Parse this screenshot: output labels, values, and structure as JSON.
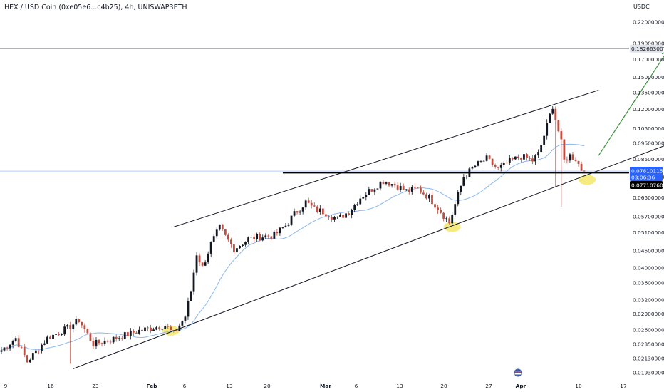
{
  "chart_data": {
    "type": "candlestick",
    "title": "HEX / USD Coin (0xe05e6...c4b25), 4h, UNISWAP3ETH",
    "price_unit": "USDC",
    "y_scale": "log",
    "ylim": [
      0.0186,
      0.232
    ],
    "price_axis_labels": [
      "0.2200000000",
      "0.1900000000",
      "0.1700000000",
      "0.1500000000",
      "0.1350000000",
      "0.1200000000",
      "0.1050000000",
      "0.0950000000",
      "0.0850000000",
      "0.0750000000",
      "0.0650000000",
      "0.0570000000",
      "0.0510000000",
      "0.0450000000",
      "0.0400000000",
      "0.0360000000",
      "0.0320000000",
      "0.0290000000",
      "0.0260000000",
      "0.0235000000",
      "0.0213000000",
      "0.0193000000"
    ],
    "price_axis_values": [
      0.22,
      0.19,
      0.17,
      0.15,
      0.135,
      0.12,
      0.105,
      0.095,
      0.085,
      0.075,
      0.065,
      0.057,
      0.051,
      0.045,
      0.04,
      0.036,
      0.032,
      0.029,
      0.026,
      0.0235,
      0.0213,
      0.0193
    ],
    "price_tags": {
      "target": {
        "label": "0.1826630079",
        "value": 0.1827,
        "color": "#e1e3ea",
        "text_color": "#131722"
      },
      "last": {
        "label": "0.0781011580",
        "sublabel": "03:06:36",
        "value": 0.0781,
        "color": "#2962ff",
        "text_color": "#ffffff"
      },
      "support": {
        "label": "0.0771076052",
        "value": 0.0771,
        "color": "#000000",
        "text_color": "#ffffff"
      }
    },
    "time_axis_labels": [
      "9",
      "16",
      "23",
      "Feb",
      "6",
      "13",
      "20",
      "Mar",
      "6",
      "13",
      "20",
      "27",
      "Apr",
      "10",
      "17"
    ],
    "time_axis_bold": [
      "Feb",
      "Mar",
      "Apr"
    ],
    "candle_count": 204,
    "price_path": {
      "x_units": "bar index",
      "points": [
        [
          0,
          0.0225
        ],
        [
          5,
          0.0245
        ],
        [
          9,
          0.0208
        ],
        [
          16,
          0.0245
        ],
        [
          23,
          0.0262
        ],
        [
          27,
          0.0278
        ],
        [
          32,
          0.0235
        ],
        [
          38,
          0.0242
        ],
        [
          48,
          0.0258
        ],
        [
          57,
          0.0268
        ],
        [
          60,
          0.0252
        ],
        [
          64,
          0.0285
        ],
        [
          66,
          0.034
        ],
        [
          68,
          0.044
        ],
        [
          70,
          0.04
        ],
        [
          73,
          0.047
        ],
        [
          76,
          0.0528
        ],
        [
          78,
          0.0495
        ],
        [
          81,
          0.0455
        ],
        [
          86,
          0.0488
        ],
        [
          90,
          0.0495
        ],
        [
          95,
          0.05
        ],
        [
          99,
          0.0535
        ],
        [
          102,
          0.058
        ],
        [
          106,
          0.063
        ],
        [
          109,
          0.06
        ],
        [
          113,
          0.0585
        ],
        [
          117,
          0.056
        ],
        [
          121,
          0.059
        ],
        [
          125,
          0.065
        ],
        [
          129,
          0.069
        ],
        [
          133,
          0.073
        ],
        [
          137,
          0.071
        ],
        [
          141,
          0.068
        ],
        [
          145,
          0.069
        ],
        [
          149,
          0.065
        ],
        [
          153,
          0.059
        ],
        [
          156,
          0.0545
        ],
        [
          158,
          0.062
        ],
        [
          161,
          0.075
        ],
        [
          165,
          0.081
        ],
        [
          169,
          0.085
        ],
        [
          173,
          0.079
        ],
        [
          177,
          0.0835
        ],
        [
          181,
          0.0865
        ],
        [
          185,
          0.084
        ],
        [
          187,
          0.088
        ],
        [
          189,
          0.1
        ],
        [
          191,
          0.115
        ],
        [
          192,
          0.123
        ],
        [
          193,
          0.112
        ],
        [
          195,
          0.095
        ],
        [
          196,
          0.084
        ],
        [
          198,
          0.087
        ],
        [
          200,
          0.085
        ],
        [
          202,
          0.079
        ],
        [
          203,
          0.0781
        ]
      ]
    },
    "moving_average": {
      "color": "#8ab7ee",
      "period": 20
    },
    "annotations": {
      "channel_upper": {
        "from": [
          60,
          0.053
        ],
        "to": [
          208,
          0.137
        ],
        "color": "#131722"
      },
      "channel_lower": {
        "from": [
          25,
          0.0198
        ],
        "to": [
          243,
          0.102
        ],
        "color": "#131722"
      },
      "support_line": {
        "from": [
          98,
          0.0771
        ],
        "to": "price_axis",
        "value": 0.0771,
        "color": "#000000"
      },
      "target_line": {
        "value": 0.1827,
        "color": "#9598a1"
      },
      "last_price_line": {
        "value": 0.0781,
        "color": "#2962ff"
      },
      "projection_arrow": {
        "from": [
          208,
          0.087
        ],
        "to": [
          232,
          0.18
        ],
        "color": "#3c8f3c"
      },
      "highlights": [
        {
          "bar": 59,
          "value": 0.0258,
          "color": "#f5e76a"
        },
        {
          "bar": 157,
          "value": 0.053,
          "color": "#f5e76a"
        },
        {
          "bar": 204,
          "value": 0.0735,
          "color": "#f5e76a"
        }
      ]
    },
    "colors": {
      "up": "#131722",
      "down": "#c14e40",
      "background": "#ffffff",
      "grid": "none"
    },
    "grid": false,
    "legend": "none"
  }
}
